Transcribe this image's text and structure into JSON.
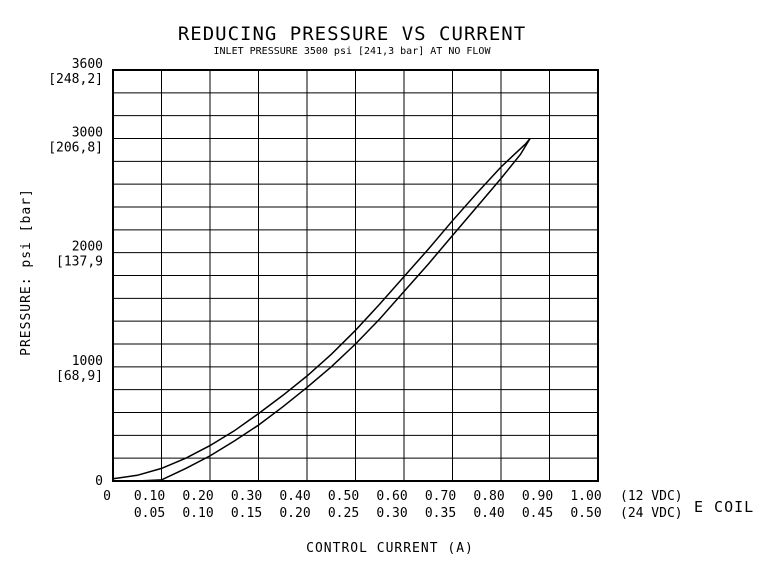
{
  "chart_data": {
    "type": "line",
    "title": "REDUCING PRESSURE VS CURRENT",
    "subtitle": "INLET PRESSURE 3500 psi [241,3 bar]  AT NO FLOW",
    "xlabel": "CONTROL CURRENT (A)",
    "ylabel": "PRESSURE: psi [bar]",
    "coil_label": "E COIL",
    "grid": true,
    "xlim": [
      0,
      1.0
    ],
    "ylim": [
      0,
      3600
    ],
    "y_ticks": [
      {
        "value": 0,
        "psi": "0",
        "bar": ""
      },
      {
        "value": 1000,
        "psi": "1000",
        "bar": "[68,9]"
      },
      {
        "value": 2000,
        "psi": "2000",
        "bar": "[137,9"
      },
      {
        "value": 3000,
        "psi": "3000",
        "bar": "[206,8]"
      },
      {
        "value": 3600,
        "psi": "3600",
        "bar": "[248,2]"
      }
    ],
    "x_ticks_12vdc": [
      "0",
      "0.10",
      "0.20",
      "0.30",
      "0.40",
      "0.50",
      "0.60",
      "0.70",
      "0.80",
      "0.90",
      "1.00"
    ],
    "x_ticks_24vdc": [
      "",
      "0.05",
      "0.10",
      "0.15",
      "0.20",
      "0.25",
      "0.30",
      "0.35",
      "0.40",
      "0.45",
      "0.50"
    ],
    "x_tick_suffix_12vdc": "(12 VDC)",
    "x_tick_suffix_24vdc": "(24 VDC)",
    "series": [
      {
        "x": [
          0,
          0.05,
          0.1,
          0.15,
          0.2,
          0.25,
          0.3,
          0.35,
          0.4,
          0.45,
          0.5,
          0.55,
          0.6,
          0.65,
          0.7,
          0.75,
          0.8,
          0.83,
          0.85,
          0.86
        ],
        "y": [
          20,
          50,
          110,
          200,
          310,
          440,
          590,
          750,
          920,
          1110,
          1320,
          1550,
          1790,
          2030,
          2280,
          2520,
          2750,
          2870,
          2950,
          3000
        ]
      },
      {
        "x": [
          0,
          0.05,
          0.1,
          0.15,
          0.2,
          0.25,
          0.3,
          0.35,
          0.4,
          0.45,
          0.5,
          0.55,
          0.6,
          0.65,
          0.7,
          0.75,
          0.8,
          0.84,
          0.86
        ],
        "y": [
          0,
          0,
          10,
          110,
          220,
          350,
          490,
          650,
          820,
          1000,
          1200,
          1420,
          1660,
          1900,
          2150,
          2400,
          2650,
          2860,
          3000
        ]
      }
    ]
  }
}
